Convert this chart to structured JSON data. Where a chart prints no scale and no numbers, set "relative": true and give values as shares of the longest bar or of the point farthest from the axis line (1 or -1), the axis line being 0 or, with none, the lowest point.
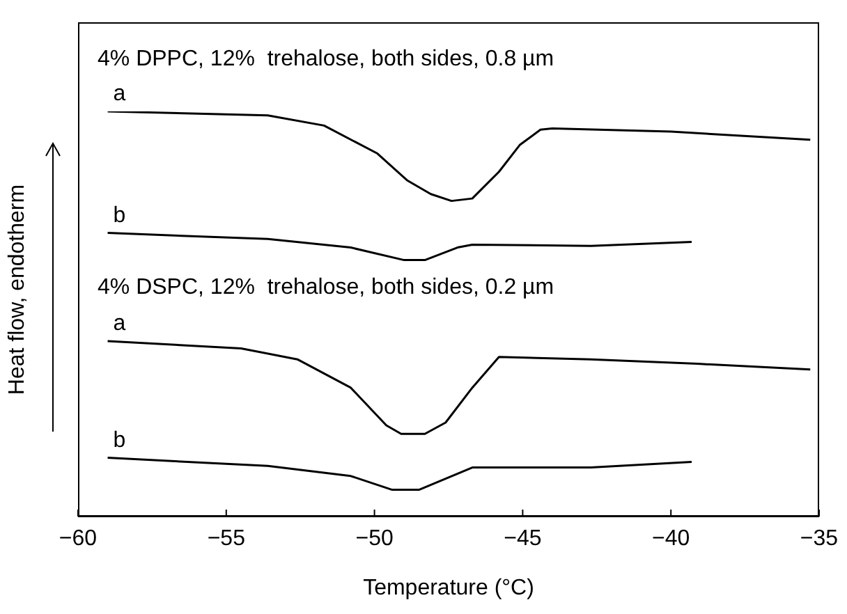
{
  "chart_data": {
    "type": "line",
    "relative": true,
    "xlabel": "Temperature (°C)",
    "ylabel": "Heat flow, endotherm",
    "xlim": [
      -60,
      -35
    ],
    "xticks": [
      -60,
      -55,
      -50,
      -45,
      -40,
      -35
    ],
    "grid": false,
    "legend": false,
    "marker": "none",
    "line_style": "solid",
    "annotations": [
      "4% DPPC, 12%  trehalose, both sides, 0.8 µm",
      "4% DSPC, 12%  trehalose, both sides, 0.2 µm"
    ],
    "series": [
      {
        "name": "a",
        "color": "#000000",
        "x": [
          -59,
          -53.6,
          -51.7,
          -49.9,
          -48.9,
          -48.1,
          -47.4,
          -46.7,
          -45.8,
          -45.1,
          -44.4,
          -44,
          -40,
          -35.3
        ],
        "values": [
          1.0,
          0.99,
          0.965,
          0.896,
          0.83,
          0.796,
          0.779,
          0.785,
          0.851,
          0.917,
          0.955,
          0.958,
          0.95,
          0.93
        ]
      },
      {
        "name": "b",
        "color": "#000000",
        "x": [
          -59,
          -53.6,
          -50.8,
          -49,
          -48.3,
          -47.2,
          -46.7,
          -42.7,
          -39.3
        ],
        "values": [
          0.7,
          0.685,
          0.664,
          0.633,
          0.633,
          0.664,
          0.671,
          0.668,
          0.678
        ]
      },
      {
        "name": "a",
        "color": "#000000",
        "x": [
          -59,
          -54.5,
          -52.6,
          -50.8,
          -49.6,
          -49.1,
          -48.3,
          -47.6,
          -46.7,
          -45.8,
          -42.7,
          -39.1,
          -35.3
        ],
        "values": [
          0.433,
          0.415,
          0.388,
          0.318,
          0.225,
          0.204,
          0.204,
          0.232,
          0.318,
          0.394,
          0.388,
          0.377,
          0.363
        ]
      },
      {
        "name": "b",
        "color": "#000000",
        "x": [
          -59,
          -53.6,
          -50.8,
          -49.4,
          -48.5,
          -46.7,
          -42.7,
          -39.3
        ],
        "values": [
          0.145,
          0.125,
          0.1,
          0.066,
          0.066,
          0.121,
          0.121,
          0.135
        ]
      }
    ]
  }
}
